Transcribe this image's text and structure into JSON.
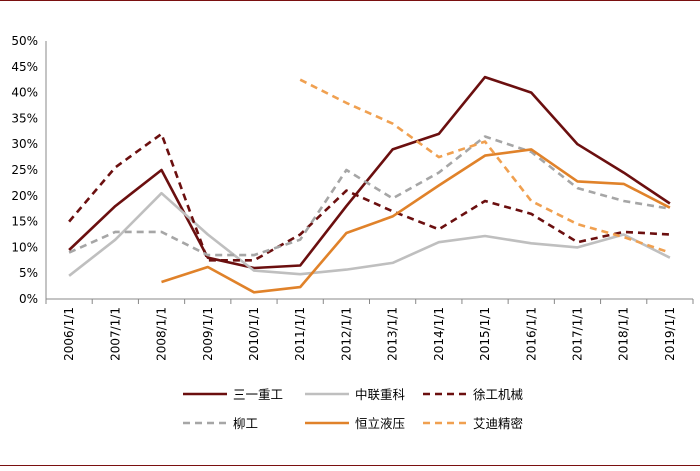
{
  "chart_data": {
    "type": "line",
    "x": [
      "2006/1/1",
      "2007/1/1",
      "2008/1/1",
      "2009/1/1",
      "2010/1/1",
      "2011/1/1",
      "2012/1/1",
      "2013/1/1",
      "2014/1/1",
      "2015/1/1",
      "2016/1/1",
      "2017/1/1",
      "2018/1/1",
      "2019/1/1"
    ],
    "ylim": [
      0,
      50
    ],
    "y_ticks": [
      "0%",
      "5%",
      "10%",
      "15%",
      "20%",
      "25%",
      "30%",
      "35%",
      "40%",
      "45%",
      "50%"
    ],
    "grid": false,
    "legend_position": "bottom",
    "series": [
      {
        "name": "三一重工",
        "color": "#6b0f0f",
        "dash": "solid",
        "values": [
          9.5,
          18,
          25,
          8,
          6,
          6.5,
          18,
          29,
          32,
          43,
          40,
          30,
          24.5,
          18.5
        ]
      },
      {
        "name": "中联重科",
        "color": "#bfbfbf",
        "dash": "solid",
        "values": [
          4.5,
          11.5,
          20.5,
          12.5,
          5.5,
          4.8,
          5.7,
          7,
          11,
          12.2,
          10.8,
          10,
          12.5,
          8
        ]
      },
      {
        "name": "徐工机械",
        "color": "#6b0f0f",
        "dash": "dashed",
        "values": [
          15,
          25.5,
          32,
          7.5,
          7.5,
          12.5,
          21,
          17,
          13.5,
          19,
          16.5,
          11,
          13,
          12.5
        ]
      },
      {
        "name": "柳工",
        "color": "#a6a6a6",
        "dash": "dashed",
        "values": [
          9,
          13,
          13,
          8.5,
          8.5,
          11.5,
          25,
          19.5,
          24.5,
          31.5,
          28.5,
          21.5,
          19,
          17.5
        ]
      },
      {
        "name": "恒立液压",
        "color": "#e0822a",
        "dash": "solid",
        "values": [
          null,
          null,
          3.3,
          6.2,
          1.3,
          2.3,
          12.8,
          16,
          22,
          27.8,
          29,
          22.8,
          22.3,
          17.7
        ]
      },
      {
        "name": "艾迪精密",
        "color": "#f0a050",
        "dash": "dashed",
        "values": [
          null,
          null,
          null,
          null,
          null,
          42.5,
          38,
          34,
          27.5,
          30.5,
          19,
          14.5,
          12,
          9
        ]
      }
    ]
  }
}
